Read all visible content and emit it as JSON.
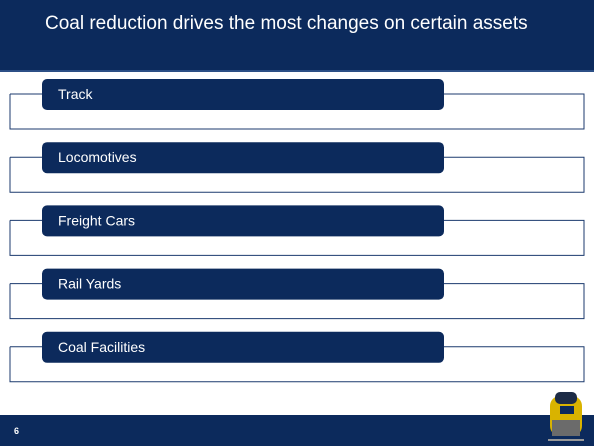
{
  "header": {
    "title": "Coal reduction drives the most changes on certain assets"
  },
  "items": [
    {
      "label": "Track"
    },
    {
      "label": "Locomotives"
    },
    {
      "label": "Freight Cars"
    },
    {
      "label": "Rail Yards"
    },
    {
      "label": "Coal Facilities"
    }
  ],
  "footer": {
    "page_number": "6"
  }
}
